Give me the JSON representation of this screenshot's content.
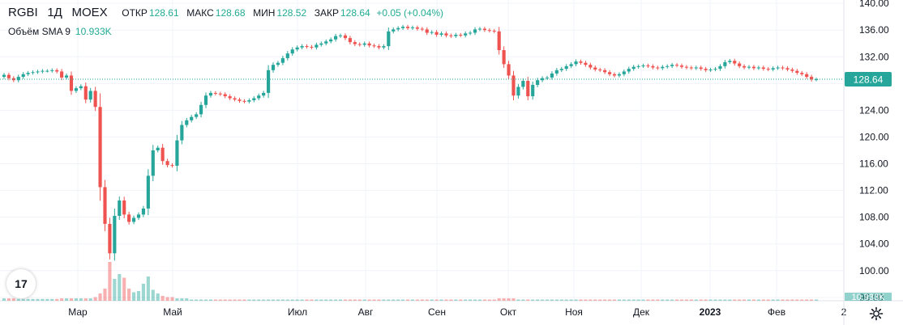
{
  "header": {
    "symbol": "RGBI",
    "interval": "1Д",
    "exchange": "MOEX",
    "open_label": "ОТКР",
    "open_value": "128.61",
    "high_label": "МАКС",
    "high_value": "128.68",
    "low_label": "МИН",
    "low_value": "128.52",
    "close_label": "ЗАКР",
    "close_value": "128.64",
    "change": "+0.05 (+0.04%)"
  },
  "volume_indicator": {
    "label": "Объём SMA 9",
    "value": "10.933K",
    "axis_badge": "10.933K"
  },
  "logo_text": "17",
  "colors": {
    "up": "#26a69a",
    "down": "#ef5350",
    "accent": "#22ab94",
    "price_badge": "#26a69a",
    "grid": "#f0f3fa",
    "axis_text": "#131722"
  },
  "chart_data": {
    "type": "candlestick",
    "y_axis": {
      "ticks": [
        96,
        100,
        104,
        108,
        112,
        116,
        120,
        124,
        128,
        132,
        136,
        140
      ],
      "tick_labels": [
        "96.00",
        "100.00",
        "104.00",
        "108.00",
        "112.00",
        "116.00",
        "120.00",
        "124.00",
        "",
        "132.00",
        "136.00",
        "140.00"
      ],
      "range": [
        95.5,
        140.5
      ]
    },
    "x_axis": {
      "labels": [
        "Мар",
        "Май",
        "Июл",
        "Авг",
        "Сен",
        "Окт",
        "Ноя",
        "Дек",
        "2023",
        "Фев",
        "2"
      ]
    },
    "last_price": 128.64,
    "last_price_label": "128.64",
    "close_series": [
      129.3,
      128.8,
      128.5,
      129.0,
      129.4,
      129.6,
      129.7,
      129.8,
      129.9,
      129.9,
      130.0,
      129.8,
      128.9,
      129.2,
      126.9,
      127.3,
      127.6,
      125.6,
      126.9,
      124.5,
      112.5,
      107.0,
      102.6,
      108.2,
      110.5,
      108.4,
      107.3,
      107.9,
      108.4,
      109.3,
      114.2,
      118.0,
      118.4,
      116.4,
      115.8,
      115.7,
      119.5,
      121.8,
      122.5,
      123.0,
      123.4,
      124.8,
      126.2,
      126.6,
      126.5,
      126.4,
      126.1,
      125.8,
      125.6,
      125.4,
      125.3,
      125.5,
      125.8,
      126.2,
      126.6,
      130.0,
      130.8,
      131.1,
      131.8,
      132.5,
      133.1,
      133.4,
      133.6,
      133.5,
      133.4,
      133.8,
      134.0,
      134.3,
      134.6,
      135.1,
      135.2,
      134.8,
      134.2,
      133.9,
      133.8,
      134.0,
      133.7,
      133.6,
      133.4,
      133.6,
      135.8,
      136.1,
      136.3,
      136.5,
      136.3,
      136.4,
      136.2,
      136.1,
      135.6,
      135.7,
      135.3,
      135.5,
      135.2,
      135.1,
      135.3,
      135.2,
      135.5,
      135.6,
      136.1,
      136.2,
      136.0,
      135.9,
      135.8,
      133.0,
      130.9,
      129.2,
      126.2,
      127.5,
      128.4,
      126.1,
      127.8,
      128.5,
      128.8,
      128.9,
      129.5,
      130.0,
      130.2,
      130.6,
      130.9,
      131.3,
      131.1,
      130.8,
      130.4,
      130.1,
      130.0,
      129.7,
      129.4,
      129.2,
      129.4,
      129.8,
      130.2,
      130.5,
      130.6,
      130.7,
      130.6,
      130.4,
      130.3,
      130.5,
      130.6,
      130.8,
      130.7,
      130.5,
      130.4,
      130.3,
      130.4,
      130.2,
      130.0,
      130.1,
      130.2,
      130.6,
      131.2,
      131.4,
      131.0,
      130.6,
      130.4,
      130.5,
      130.3,
      130.4,
      130.2,
      130.1,
      130.3,
      130.4,
      130.3,
      130.1,
      129.9,
      129.6,
      129.4,
      129.0,
      128.6,
      128.64
    ],
    "volume": [
      2,
      2,
      2,
      1.5,
      1.5,
      1.5,
      1.5,
      1.5,
      1.5,
      1.5,
      1.5,
      1.5,
      2,
      2,
      2,
      2,
      2,
      2,
      2,
      3,
      6,
      10,
      32,
      18,
      22,
      19,
      10,
      7,
      8,
      14,
      20,
      9,
      6,
      4,
      3,
      3,
      2,
      2,
      2,
      1,
      1,
      1,
      1,
      1,
      1,
      1,
      1,
      1,
      1,
      1,
      1,
      1,
      1,
      1,
      1,
      1,
      1,
      1,
      1,
      1,
      1,
      1,
      1,
      1,
      1,
      1,
      1,
      1,
      1,
      1,
      1,
      1,
      1,
      1,
      1,
      1,
      1,
      1,
      1,
      1,
      1,
      1,
      1,
      1,
      1,
      1,
      1,
      1,
      1,
      1,
      1,
      1,
      1,
      1,
      1,
      1,
      1,
      1,
      1,
      1,
      1,
      1,
      1,
      2,
      2,
      2,
      2,
      1,
      1,
      1,
      1,
      1,
      1,
      1,
      1,
      1,
      1,
      1,
      1,
      1,
      1,
      1,
      1,
      1,
      1,
      1,
      1,
      1,
      1,
      1,
      1,
      1,
      1,
      1,
      1,
      1,
      1,
      1,
      1,
      1,
      1,
      1,
      1,
      1,
      1,
      1,
      1,
      1,
      1,
      1,
      1,
      1,
      1,
      1,
      1,
      1,
      1,
      1,
      1,
      1,
      1,
      1,
      1,
      1,
      1,
      1,
      1,
      1,
      1,
      1
    ],
    "grid": true
  }
}
